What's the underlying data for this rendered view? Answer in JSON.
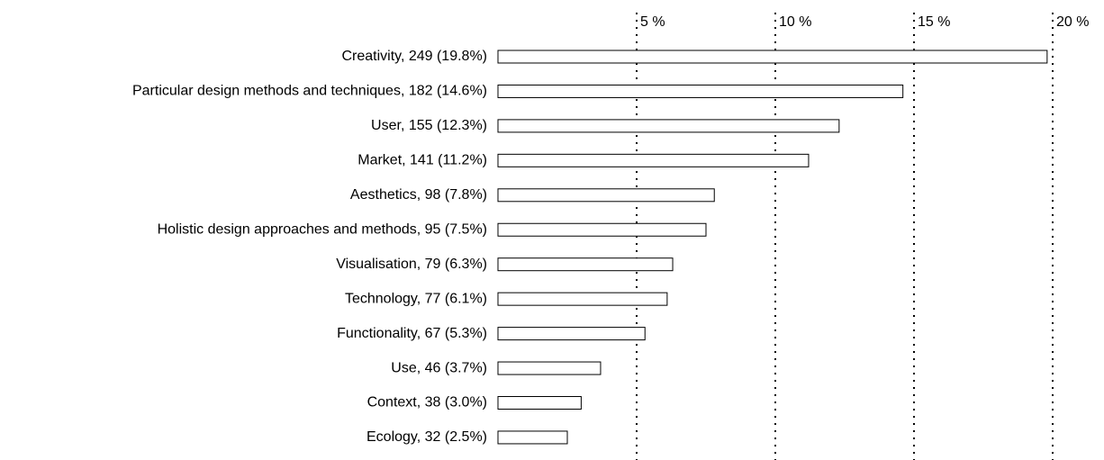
{
  "chart_data": {
    "type": "bar",
    "orientation": "horizontal",
    "categories": [
      "Creativity, 249 (19.8%)",
      "Particular design methods and techniques, 182 (14.6%)",
      "User, 155 (12.3%)",
      "Market, 141 (11.2%)",
      "Aesthetics, 98 (7.8%)",
      "Holistic design approaches and methods, 95 (7.5%)",
      "Visualisation, 79 (6.3%)",
      "Technology, 77 (6.1%)",
      "Functionality, 67 (5.3%)",
      "Use, 46 (3.7%)",
      "Context, 38 (3.0%)",
      "Ecology, 32 (2.5%)"
    ],
    "values": [
      19.8,
      14.6,
      12.3,
      11.2,
      7.8,
      7.5,
      6.3,
      6.1,
      5.3,
      3.7,
      3.0,
      2.5
    ],
    "color": "#ffffff",
    "xlim": [
      0,
      20
    ],
    "xticks": [
      {
        "value": 5,
        "label": "5 %"
      },
      {
        "value": 10,
        "label": "10 %"
      },
      {
        "value": 15,
        "label": "15 %"
      },
      {
        "value": 20,
        "label": "20 %"
      }
    ],
    "grid": true
  }
}
